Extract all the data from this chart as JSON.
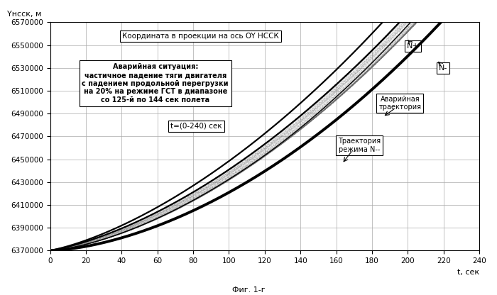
{
  "title": "Фиг. 1-г",
  "ylabel": "Yнсск, м",
  "xlabel": "t, сек",
  "ymin": 6370000,
  "ymax": 6570000,
  "xmin": 0,
  "xmax": 240,
  "ytick_step": 20000,
  "xtick_step": 20,
  "box_title": "Координата в проекции на ось OY НССК",
  "annotation_emergency": "Аварийная ситуация:\nчастичное падение тяги двигателя\nс падением продольной перегрузки\nна 20% на режиме ГСТ в диапазоне\nсо 125-й по 144 сек полета",
  "annotation_t": "t=(0-240) сек",
  "annotation_Nplus": "N+",
  "annotation_Nminus": "N-",
  "annotation_emergency_traj": "Аварийная\nтраектория",
  "annotation_Nmm_traj": "Траектория\nрежима N--",
  "bg_color": "#ffffff",
  "grid_color": "#aaaaaa",
  "main_curve_color": "#000000",
  "n_band_lines": 30
}
